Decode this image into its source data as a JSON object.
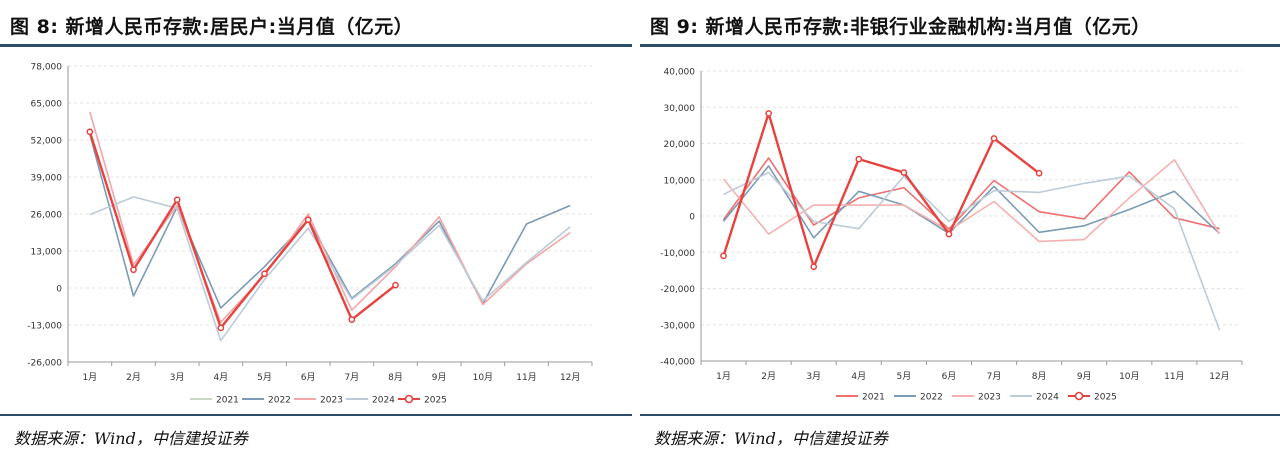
{
  "left": {
    "title": "图 8:  新增人民币存款:居民户:当月值（亿元）",
    "source": "数据来源：Wind，中信建投证券"
  },
  "right": {
    "title": "图 9:  新增人民币存款:非银行业金融机构:当月值（亿元）",
    "source": "数据来源：Wind，中信建投证券"
  },
  "chart_data": [
    {
      "type": "line",
      "title": "新增人民币存款:居民户:当月值（亿元）",
      "xlabel": "",
      "ylabel": "",
      "categories": [
        "1月",
        "2月",
        "3月",
        "4月",
        "5月",
        "6月",
        "7月",
        "8月",
        "9月",
        "10月",
        "11月",
        "12月"
      ],
      "yticks": [
        -26000,
        -13000,
        0,
        13000,
        26000,
        39000,
        52000,
        65000,
        78000
      ],
      "ytick_labels": [
        "-26,000",
        "-13,000",
        "0",
        "13,000",
        "26,000",
        "39,000",
        "52,000",
        "65,000",
        "78,000"
      ],
      "ylim": [
        -26000,
        78000
      ],
      "grid": true,
      "legend": "bottom",
      "series": [
        {
          "name": "2021",
          "color": "#c9d8c5",
          "values": [
            null,
            null,
            null,
            null,
            null,
            null,
            null,
            null,
            null,
            null,
            null,
            null
          ]
        },
        {
          "name": "2022",
          "color": "#7b9bb6",
          "values": [
            54000,
            -2800,
            28500,
            -7000,
            7500,
            24000,
            -3600,
            8500,
            23500,
            -5500,
            22500,
            29000
          ]
        },
        {
          "name": "2023",
          "color": "#f4a6a6",
          "values": [
            61900,
            8200,
            29000,
            -12000,
            4500,
            26000,
            -7800,
            7500,
            25000,
            -5800,
            8500,
            19500
          ]
        },
        {
          "name": "2024",
          "color": "#bdcbd8",
          "values": [
            25800,
            32000,
            28000,
            -18500,
            3000,
            21000,
            -4000,
            8000,
            22000,
            -4500,
            9000,
            21500
          ]
        },
        {
          "name": "2025",
          "color": "#e8423f",
          "marker": true,
          "values": [
            54900,
            6400,
            31000,
            -14000,
            5000,
            24000,
            -11100,
            1000,
            null,
            null,
            null,
            null
          ]
        }
      ]
    },
    {
      "type": "line",
      "title": "新增人民币存款:非银行业金融机构:当月值（亿元）",
      "xlabel": "",
      "ylabel": "",
      "categories": [
        "1月",
        "2月",
        "3月",
        "4月",
        "5月",
        "6月",
        "7月",
        "8月",
        "9月",
        "10月",
        "11月",
        "12月"
      ],
      "yticks": [
        -40000,
        -30000,
        -20000,
        -10000,
        0,
        10000,
        20000,
        30000,
        40000
      ],
      "ytick_labels": [
        "-40,000",
        "-30,000",
        "-20,000",
        "-10,000",
        "0",
        "10,000",
        "20,000",
        "30,000",
        "40,000"
      ],
      "ylim": [
        -40000,
        40000
      ],
      "grid": true,
      "legend": "bottom",
      "series": [
        {
          "name": "2021",
          "color": "#f07070",
          "values": [
            -1000,
            16000,
            -2500,
            5000,
            7800,
            -3600,
            9800,
            1200,
            -800,
            12200,
            -500,
            -3500
          ]
        },
        {
          "name": "2022",
          "color": "#7b9bb6",
          "values": [
            -1500,
            13800,
            -6000,
            6800,
            3000,
            -4800,
            8200,
            -4500,
            -2700,
            1800,
            6800,
            -4800
          ]
        },
        {
          "name": "2023",
          "color": "#f6b0b0",
          "values": [
            10200,
            -5000,
            3000,
            3000,
            3000,
            -4000,
            4000,
            -7000,
            -6500,
            5000,
            15500,
            -5000
          ]
        },
        {
          "name": "2024",
          "color": "#bdcbd8",
          "values": [
            6000,
            12000,
            -1500,
            -3500,
            11000,
            -1500,
            7000,
            6500,
            9000,
            11000,
            2000,
            -31500
          ]
        },
        {
          "name": "2025",
          "color": "#e8423f",
          "marker": true,
          "values": [
            -11000,
            28300,
            -14000,
            15700,
            12000,
            -5000,
            21400,
            11800,
            null,
            null,
            null,
            null
          ]
        }
      ]
    }
  ]
}
